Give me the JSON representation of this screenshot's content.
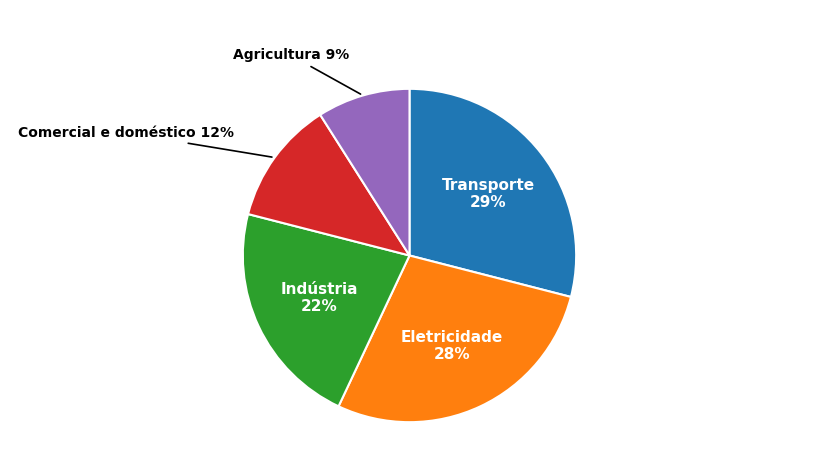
{
  "chart_data": {
    "type": "pie",
    "categories": [
      "Transporte\n29%",
      "Eletricidade\n28%",
      "Indústria\n22%",
      "Comercial e doméstico 12%",
      "Agricultura 9%"
    ],
    "values": [
      29,
      28,
      22,
      12,
      9
    ]
  }
}
